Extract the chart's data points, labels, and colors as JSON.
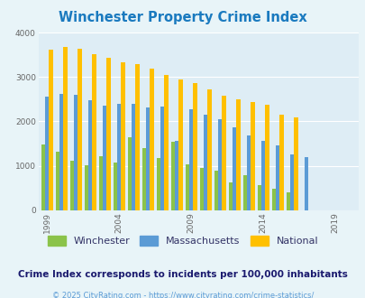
{
  "title": "Winchester Property Crime Index",
  "title_color": "#1a7abf",
  "years": [
    1999,
    2000,
    2001,
    2002,
    2003,
    2004,
    2005,
    2006,
    2007,
    2008,
    2009,
    2010,
    2011,
    2012,
    2013,
    2014,
    2015,
    2016,
    2017,
    2018,
    2019,
    2020
  ],
  "winchester": [
    1470,
    1310,
    1110,
    1020,
    1210,
    1080,
    1640,
    1390,
    1180,
    1550,
    1040,
    950,
    880,
    630,
    780,
    560,
    490,
    400,
    null,
    null,
    null,
    null
  ],
  "massachusetts": [
    2560,
    2630,
    2600,
    2480,
    2360,
    2390,
    2400,
    2310,
    2330,
    1560,
    2280,
    2150,
    2060,
    1870,
    1690,
    1560,
    1450,
    1260,
    1190,
    null,
    null,
    null
  ],
  "national": [
    3620,
    3670,
    3640,
    3510,
    3440,
    3340,
    3300,
    3200,
    3040,
    2940,
    2870,
    2720,
    2590,
    2490,
    2440,
    2380,
    2150,
    2100,
    null,
    null,
    null,
    null
  ],
  "winchester_color": "#8bc34a",
  "massachusetts_color": "#5b9bd5",
  "national_color": "#ffc000",
  "bg_color": "#e8f4f8",
  "plot_bg_color": "#deedf5",
  "ylim": [
    0,
    4000
  ],
  "yticks": [
    0,
    1000,
    2000,
    3000,
    4000
  ],
  "xlabel_ticks": [
    1999,
    2004,
    2009,
    2014,
    2019
  ],
  "subtitle": "Crime Index corresponds to incidents per 100,000 inhabitants",
  "footer": "© 2025 CityRating.com - https://www.cityrating.com/crime-statistics/",
  "subtitle_color": "#1a1a6e",
  "footer_color": "#5b9bd5",
  "bar_width": 0.27
}
